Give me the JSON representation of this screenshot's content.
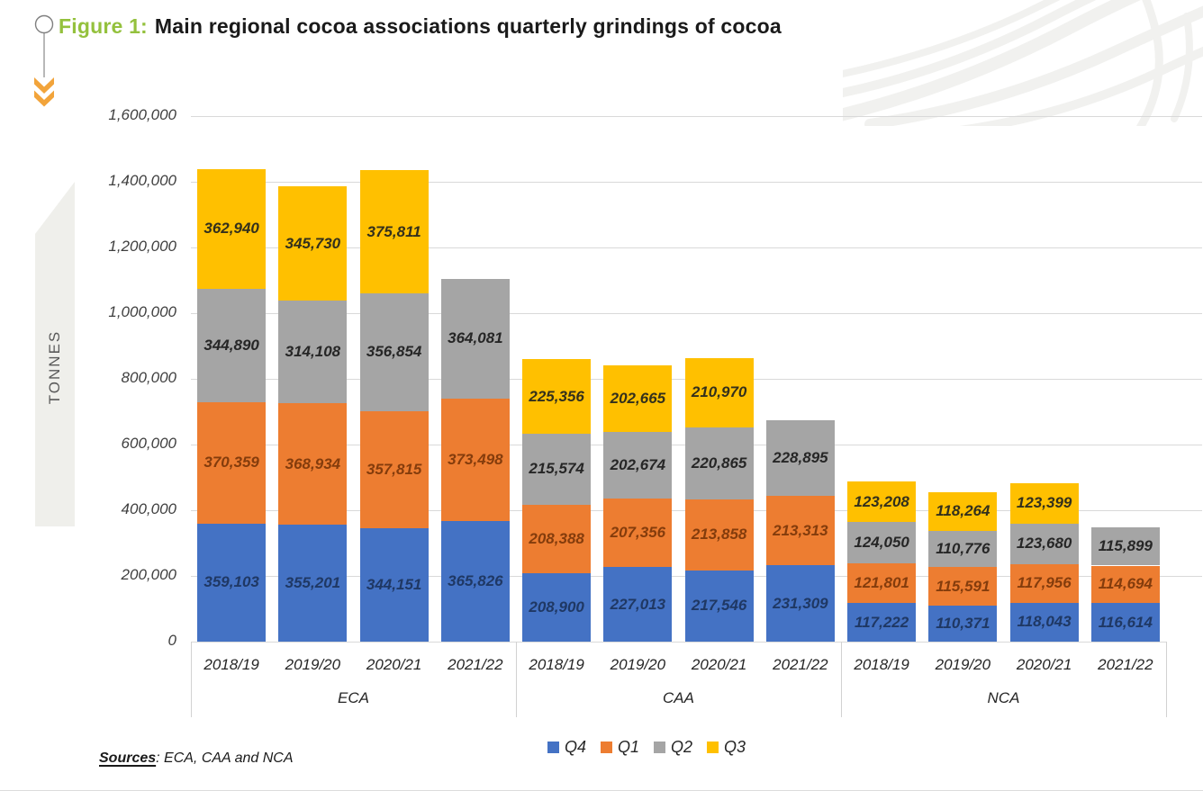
{
  "title": {
    "prefix": "Figure 1:",
    "text": "Main regional cocoa associations quarterly grindings of cocoa"
  },
  "y_axis": {
    "title": "TONNES",
    "ticks": [
      "0",
      "200,000",
      "400,000",
      "600,000",
      "800,000",
      "1,000,000",
      "1,200,000",
      "1,400,000",
      "1,600,000"
    ]
  },
  "x_axis": {
    "groups": [
      "ECA",
      "CAA",
      "NCA"
    ],
    "categories": [
      "2018/19",
      "2019/20",
      "2020/21",
      "2021/22"
    ]
  },
  "legend": [
    {
      "label": "Q4",
      "color": "#4472C4"
    },
    {
      "label": "Q1",
      "color": "#ED7D31"
    },
    {
      "label": "Q2",
      "color": "#A5A5A5"
    },
    {
      "label": "Q3",
      "color": "#FFC000"
    }
  ],
  "sources": {
    "label": "Sources",
    "text": ": ECA, CAA and NCA"
  },
  "chart_data": {
    "type": "bar",
    "stacked": true,
    "title": "Main regional cocoa associations quarterly grindings of cocoa",
    "ylabel": "TONNES",
    "ylim": [
      0,
      1600000
    ],
    "grid": true,
    "legend_position": "bottom",
    "groups": [
      "ECA",
      "CAA",
      "NCA"
    ],
    "categories": [
      "2018/19",
      "2019/20",
      "2020/21",
      "2021/22"
    ],
    "series": [
      {
        "name": "Q4",
        "color": "#4472C4",
        "label_color": "#1F3864",
        "values": {
          "ECA": [
            359103,
            355201,
            344151,
            365826
          ],
          "CAA": [
            208900,
            227013,
            217546,
            231309
          ],
          "NCA": [
            117222,
            110371,
            118043,
            116614
          ]
        }
      },
      {
        "name": "Q1",
        "color": "#ED7D31",
        "label_color": "#843C0C",
        "values": {
          "ECA": [
            370359,
            368934,
            357815,
            373498
          ],
          "CAA": [
            208388,
            207356,
            213858,
            213313
          ],
          "NCA": [
            121801,
            115591,
            117956,
            114694
          ]
        }
      },
      {
        "name": "Q2",
        "color": "#A5A5A5",
        "label_color": "#262626",
        "values": {
          "ECA": [
            344890,
            314108,
            356854,
            364081
          ],
          "CAA": [
            215574,
            202674,
            220865,
            228895
          ],
          "NCA": [
            124050,
            110776,
            123680,
            115899
          ]
        }
      },
      {
        "name": "Q3",
        "color": "#FFC000",
        "label_color": "#33301C",
        "values": {
          "ECA": [
            362940,
            345730,
            375811,
            null
          ],
          "CAA": [
            225356,
            202665,
            210970,
            null
          ],
          "NCA": [
            123208,
            118264,
            123399,
            null
          ]
        }
      }
    ]
  }
}
